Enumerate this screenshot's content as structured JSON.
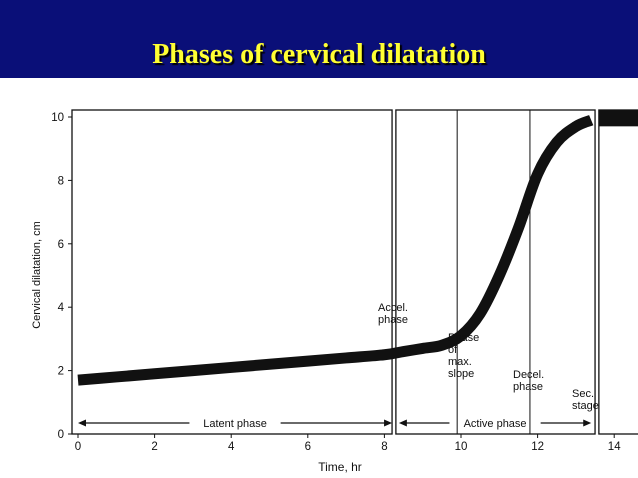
{
  "slide": {
    "title": "Phases of cervical dilatation"
  },
  "colors": {
    "header_bg": "#0a0f78",
    "title": "#ffff33",
    "curve": "#111111"
  },
  "chart_data": {
    "type": "line",
    "title": "",
    "xlabel": "Time, hr",
    "ylabel": "Cervical dilatation, cm",
    "xlim": [
      0,
      14
    ],
    "ylim": [
      0,
      10
    ],
    "xticks": [
      0,
      2,
      4,
      6,
      8,
      10,
      12,
      14
    ],
    "yticks": [
      0,
      2,
      4,
      6,
      8,
      10
    ],
    "series": [
      {
        "x": [
          0,
          1,
          2,
          3,
          4,
          5,
          6,
          7,
          8,
          8.5,
          9,
          9.5,
          10,
          10.5,
          11,
          11.5,
          12,
          12.5,
          13,
          13.4
        ],
        "y": [
          1.7,
          1.8,
          1.9,
          2.0,
          2.1,
          2.2,
          2.3,
          2.4,
          2.5,
          2.6,
          2.7,
          2.8,
          3.1,
          3.8,
          5.0,
          6.5,
          8.2,
          9.2,
          9.7,
          9.9
        ]
      }
    ],
    "panels": [
      {
        "x_start": 0,
        "x_end": 8.2
      },
      {
        "x_start": 8.3,
        "x_end": 13.5
      },
      {
        "x_start": 13.6,
        "x_end": 15.0
      }
    ],
    "phase_dividers_x": [
      9.9,
      11.8
    ],
    "annotations": [
      {
        "key": "accel",
        "lines": [
          "Accel.",
          "phase"
        ]
      },
      {
        "key": "maxslope",
        "lines": [
          "Phase",
          "of",
          "max.",
          "slope"
        ]
      },
      {
        "key": "decel",
        "lines": [
          "Decel.",
          "phase"
        ]
      },
      {
        "key": "sec",
        "lines": [
          "Sec.",
          "stage"
        ]
      }
    ],
    "arrows": [
      {
        "label": "Latent phase",
        "x_start": 0,
        "x_end": 8.2
      },
      {
        "label": "Active phase",
        "x_start": 8.3,
        "x_end": 13.4
      }
    ],
    "second_stage_bar": {
      "x_start": 13.6,
      "x_end": 15.0,
      "y": 9.8
    }
  }
}
